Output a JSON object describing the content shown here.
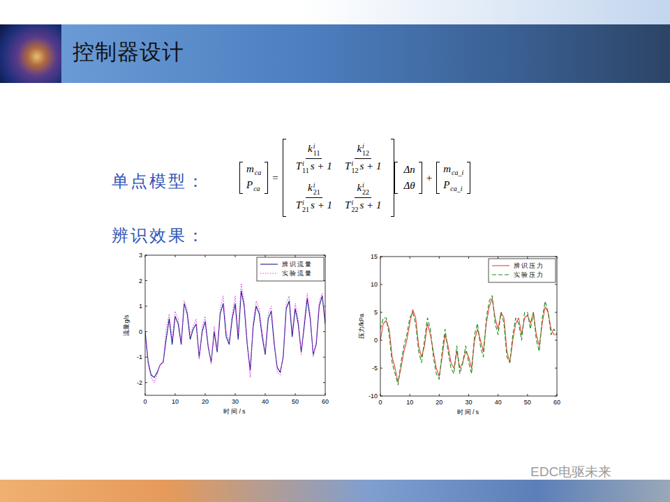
{
  "slide": {
    "title": "控制器设计",
    "model_label": "单点模型：",
    "result_label": "辨识效果：",
    "watermark": "EDC电驱未来",
    "formula": {
      "lhs": [
        {
          "base": "m",
          "sub": "ca"
        },
        {
          "base": "P",
          "sub": "ca"
        }
      ],
      "equals": "=",
      "matrix": [
        [
          {
            "num": {
              "base": "k",
              "sub": "11",
              "sup": "i"
            },
            "den": {
              "base": "T",
              "sub": "11",
              "sup": "i",
              "tail": "s + 1"
            }
          },
          {
            "num": {
              "base": "k",
              "sub": "12",
              "sup": "i"
            },
            "den": {
              "base": "T",
              "sub": "12",
              "sup": "i",
              "tail": "s + 1"
            }
          }
        ],
        [
          {
            "num": {
              "base": "k",
              "sub": "21",
              "sup": "i"
            },
            "den": {
              "base": "T",
              "sub": "21",
              "sup": "i",
              "tail": "s + 1"
            }
          },
          {
            "num": {
              "base": "k",
              "sub": "22",
              "sup": "i"
            },
            "den": {
              "base": "T",
              "sub": "22",
              "sup": "i",
              "tail": "s + 1"
            }
          }
        ]
      ],
      "input": [
        "Δn",
        "Δθ"
      ],
      "plus": "+",
      "offset": [
        {
          "base": "m",
          "sub": "ca_i"
        },
        {
          "base": "P",
          "sub": "ca_i"
        }
      ]
    }
  },
  "chart_data": [
    {
      "type": "line",
      "xlabel": "时间/s",
      "ylabel": "流量g/s",
      "x": [
        0,
        1,
        2,
        3,
        4,
        5,
        6,
        7,
        8,
        9,
        10,
        11,
        12,
        13,
        14,
        15,
        16,
        17,
        18,
        19,
        20,
        21,
        22,
        23,
        24,
        25,
        26,
        27,
        28,
        29,
        30,
        31,
        32,
        33,
        34,
        35,
        36,
        37,
        38,
        39,
        40,
        41,
        42,
        43,
        44,
        45,
        46,
        47,
        48,
        49,
        50,
        51,
        52,
        53,
        54,
        55,
        56,
        57,
        58,
        59,
        60
      ],
      "xlim": [
        0,
        60
      ],
      "xticks": [
        0,
        10,
        20,
        30,
        40,
        50,
        60
      ],
      "ylim": [
        -2.5,
        3
      ],
      "yticks": [
        -2,
        -1,
        0,
        1,
        2,
        3
      ],
      "grid": false,
      "legend": "upper right",
      "series": [
        {
          "name": "辨识流量",
          "color": "#1a1a8c",
          "line_style": "solid",
          "values": [
            0,
            -1.2,
            -1.7,
            -1.8,
            -1.6,
            -1.3,
            -1.2,
            -0.3,
            0.5,
            -0.5,
            0.6,
            0.3,
            -0.5,
            1.1,
            0.7,
            -0.3,
            0.1,
            0.3,
            -1.0,
            0.0,
            0.4,
            -0.6,
            -1.2,
            0.0,
            -0.8,
            0.7,
            1.1,
            -0.2,
            -0.5,
            0.5,
            1.1,
            -0.3,
            1.6,
            1.0,
            -0.5,
            -1.5,
            0.2,
            1.0,
            0.7,
            -0.2,
            -0.9,
            0.5,
            0.8,
            -0.5,
            -1.4,
            -1.6,
            -1.0,
            0.9,
            1.2,
            -0.2,
            0.9,
            0.3,
            -0.8,
            0.2,
            1.3,
            0.5,
            -0.9,
            -0.5,
            1.0,
            1.4,
            0.3
          ]
        },
        {
          "name": "实验流量",
          "color": "#e040e0",
          "line_style": "dotted",
          "values": [
            -0.1,
            -1.3,
            -1.8,
            -2.0,
            -1.7,
            -1.3,
            -1.2,
            0.1,
            0.7,
            -0.3,
            0.8,
            0.5,
            -0.4,
            1.2,
            0.9,
            -0.1,
            0.2,
            0.5,
            -1.1,
            0.2,
            0.6,
            -0.5,
            -1.3,
            0.2,
            -0.7,
            0.9,
            1.4,
            0.0,
            -0.4,
            0.7,
            1.4,
            -0.1,
            1.9,
            1.2,
            -0.4,
            -1.8,
            0.4,
            1.2,
            0.9,
            0.0,
            -0.8,
            0.7,
            1.0,
            -0.3,
            -1.6,
            -1.7,
            -0.9,
            1.1,
            1.4,
            0.0,
            1.1,
            0.5,
            -0.9,
            0.4,
            1.5,
            0.7,
            -1.0,
            -0.4,
            1.2,
            1.5,
            0.5
          ]
        }
      ]
    },
    {
      "type": "line",
      "xlabel": "时间/s",
      "ylabel": "压力/kPa",
      "x": [
        0,
        1,
        2,
        3,
        4,
        5,
        6,
        7,
        8,
        9,
        10,
        11,
        12,
        13,
        14,
        15,
        16,
        17,
        18,
        19,
        20,
        21,
        22,
        23,
        24,
        25,
        26,
        27,
        28,
        29,
        30,
        31,
        32,
        33,
        34,
        35,
        36,
        37,
        38,
        39,
        40,
        41,
        42,
        43,
        44,
        45,
        46,
        47,
        48,
        49,
        50,
        51,
        52,
        53,
        54,
        55,
        56,
        57,
        58,
        59,
        60
      ],
      "xlim": [
        0,
        60
      ],
      "xticks": [
        0,
        10,
        20,
        30,
        40,
        50,
        60
      ],
      "ylim": [
        -10,
        15
      ],
      "yticks": [
        -10,
        -5,
        0,
        5,
        10,
        15
      ],
      "grid": false,
      "legend": "upper right",
      "series": [
        {
          "name": "辨识压力",
          "color": "#e8433a",
          "line_style": "solid",
          "values": [
            0,
            3,
            3.5,
            2,
            -3,
            -5,
            -7.5,
            -5,
            -2,
            0,
            3,
            5.5,
            4,
            -1,
            -3,
            -1,
            3,
            1,
            -2,
            -5,
            -6.5,
            -3,
            1,
            -1,
            -4,
            -5,
            -2,
            -5,
            -4,
            -2,
            -3,
            -5,
            0,
            2,
            0,
            -2,
            3,
            6,
            7.5,
            4,
            2,
            5,
            4,
            -2,
            -4,
            0,
            3,
            4,
            1,
            4,
            4.5,
            3,
            5,
            1,
            -1,
            3,
            6,
            5,
            2,
            1,
            1
          ]
        },
        {
          "name": "实验压力",
          "color": "#1a8a1a",
          "line_style": "dashed",
          "values": [
            2,
            4,
            4,
            1,
            -4,
            -6,
            -8,
            -4,
            -1,
            1,
            4,
            5,
            3,
            -2,
            -4,
            0,
            4,
            2,
            -3,
            -6,
            -7,
            -2,
            2,
            -2,
            -5,
            -6,
            -1,
            -6,
            -4,
            -1,
            -4,
            -6,
            1,
            3,
            -1,
            -3,
            4,
            7,
            8,
            3,
            1,
            5,
            3,
            -3,
            -4,
            1,
            4,
            3,
            0,
            5,
            5,
            2,
            5,
            0,
            -2,
            4,
            7,
            5,
            1,
            2,
            1
          ]
        }
      ]
    }
  ]
}
